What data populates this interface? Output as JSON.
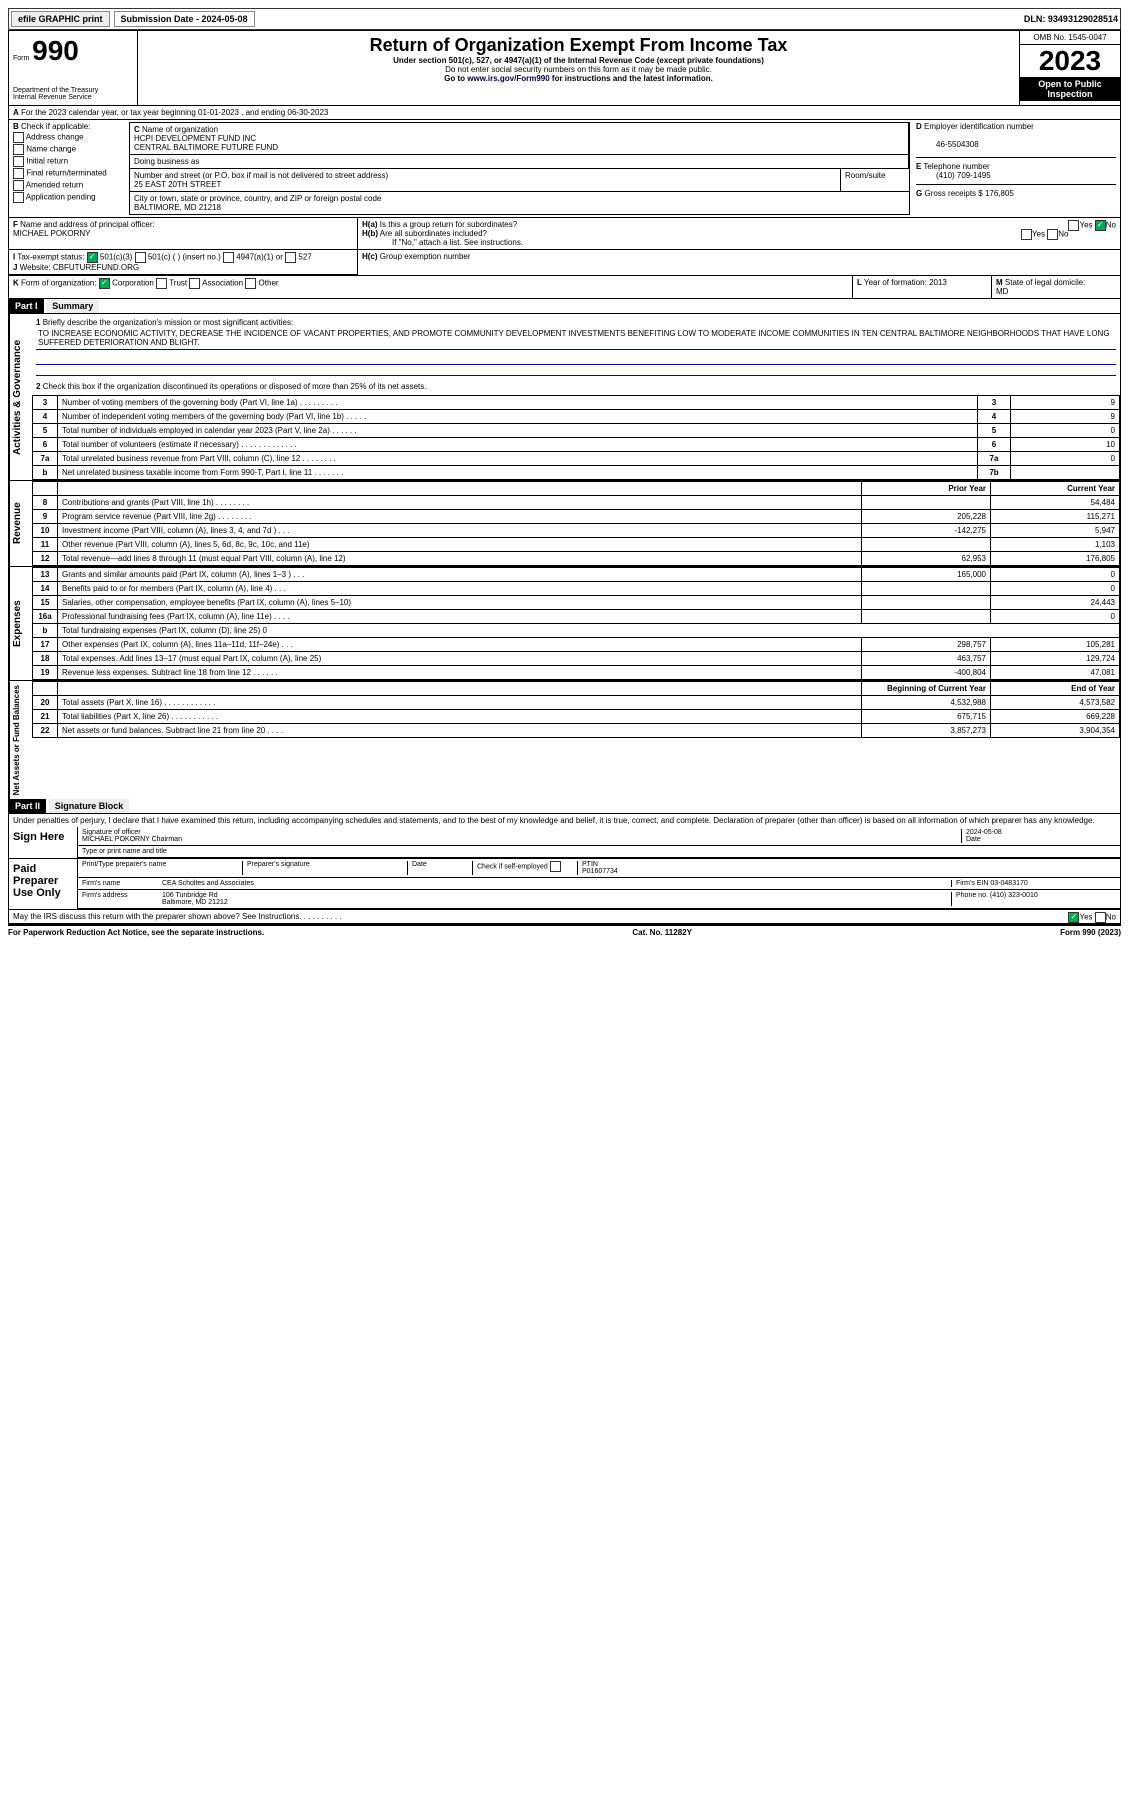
{
  "topbar": {
    "efile": "efile GRAPHIC print",
    "submission_label": "Submission Date - 2024-05-08",
    "dln": "DLN: 93493129028514"
  },
  "header": {
    "form_prefix": "Form",
    "form_num": "990",
    "dept1": "Department of the Treasury",
    "dept2": "Internal Revenue Service",
    "title": "Return of Organization Exempt From Income Tax",
    "subtitle1": "Under section 501(c), 527, or 4947(a)(1) of the Internal Revenue Code (except private foundations)",
    "subtitle2": "Do not enter social security numbers on this form as it may be made public.",
    "goto": "Go to ",
    "goto_link": "www.irs.gov/Form990",
    "goto_after": " for instructions and the latest information.",
    "omb": "OMB No. 1545-0047",
    "year": "2023",
    "inspection": "Open to Public Inspection"
  },
  "A": {
    "text": "For the 2023 calendar year, or tax year beginning 01-01-2023   , and ending 06-30-2023"
  },
  "B": {
    "label": "Check if applicable:",
    "items": [
      "Address change",
      "Name change",
      "Initial return",
      "Final return/terminated",
      "Amended return",
      "Application pending"
    ]
  },
  "C": {
    "name_label": "Name of organization",
    "name1": "HCPI DEVELOPMENT FUND INC",
    "name2": "CENTRAL BALTIMORE FUTURE FUND",
    "dba_label": "Doing business as",
    "street_label": "Number and street (or P.O. box if mail is not delivered to street address)",
    "room_label": "Room/suite",
    "street": "25 EAST 20TH STREET",
    "city_label": "City or town, state or province, country, and ZIP or foreign postal code",
    "city": "BALTIMORE, MD  21218"
  },
  "D": {
    "label": "Employer identification number",
    "value": "46-5504308"
  },
  "E": {
    "label": "Telephone number",
    "value": "(410) 709-1495"
  },
  "G": {
    "label": "Gross receipts $",
    "value": "176,805"
  },
  "F": {
    "label": "Name and address of principal officer:",
    "value": "MICHAEL POKORNY"
  },
  "H": {
    "a": "Is this a group return for subordinates?",
    "b": "Are all subordinates included?",
    "b_note": "If \"No,\" attach a list. See instructions.",
    "c": "Group exemption number",
    "yes": "Yes",
    "no": "No"
  },
  "I": {
    "label": "Tax-exempt status:",
    "o1": "501(c)(3)",
    "o2": "501(c) (  ) (insert no.)",
    "o3": "4947(a)(1) or",
    "o4": "527"
  },
  "J": {
    "label": "Website:",
    "value": "CBFUTUREFUND.ORG"
  },
  "K": {
    "label": "Form of organization:",
    "corp": "Corporation",
    "trust": "Trust",
    "assoc": "Association",
    "other": "Other"
  },
  "L": {
    "label": "Year of formation:",
    "value": "2013"
  },
  "M": {
    "label": "State of legal domicile:",
    "value": "MD"
  },
  "part1": {
    "title": "Part I",
    "subtitle": "Summary",
    "q1_label": "Briefly describe the organization's mission or most significant activities:",
    "q1_text": "TO INCREASE ECONOMIC ACTIVITY, DECREASE THE INCIDENCE OF VACANT PROPERTIES, AND PROMOTE COMMUNITY DEVELOPMENT INVESTMENTS BENEFITING LOW TO MODERATE INCOME COMMUNITIES IN TEN CENTRAL BALTIMORE NEIGHBORHOODS THAT HAVE LONG SUFFERED DETERIORATION AND BLIGHT.",
    "q2": "Check this box     if the organization discontinued its operations or disposed of more than 25% of its net assets.",
    "rows_gov": [
      {
        "n": "3",
        "d": "Number of voting members of the governing body (Part VI, line 1a)   .    .    .    .    .    .    .    .    .",
        "r": "3",
        "v": "9"
      },
      {
        "n": "4",
        "d": "Number of independent voting members of the governing body (Part VI, line 1b)   .    .    .    .    .",
        "r": "4",
        "v": "9"
      },
      {
        "n": "5",
        "d": "Total number of individuals employed in calendar year 2023 (Part V, line 2a)   .    .    .    .    .    .",
        "r": "5",
        "v": "0"
      },
      {
        "n": "6",
        "d": "Total number of volunteers (estimate if necessary)   .    .    .    .    .    .    .    .    .    .    .    .    .",
        "r": "6",
        "v": "10"
      },
      {
        "n": "7a",
        "d": "Total unrelated business revenue from Part VIII, column (C), line 12   .    .    .    .    .    .    .    .",
        "r": "7a",
        "v": "0"
      },
      {
        "n": "b",
        "d": "Net unrelated business taxable income from Form 990-T, Part I, line 11   .    .    .    .    .    .    .",
        "r": "7b",
        "v": ""
      }
    ],
    "prior": "Prior Year",
    "current": "Current Year",
    "rows_rev": [
      {
        "n": "8",
        "d": "Contributions and grants (Part VIII, line 1h)   .    .    .    .    .    .    .    .",
        "p": "",
        "c": "54,484"
      },
      {
        "n": "9",
        "d": "Program service revenue (Part VIII, line 2g)   .    .    .    .    .    .    .    .",
        "p": "205,228",
        "c": "115,271"
      },
      {
        "n": "10",
        "d": "Investment income (Part VIII, column (A), lines 3, 4, and 7d )   .    .    .",
        "p": "-142,275",
        "c": "5,947"
      },
      {
        "n": "11",
        "d": "Other revenue (Part VIII, column (A), lines 5, 6d, 8c, 9c, 10c, and 11e)",
        "p": "",
        "c": "1,103"
      },
      {
        "n": "12",
        "d": "Total revenue—add lines 8 through 11 (must equal Part VIII, column (A), line 12)",
        "p": "62,953",
        "c": "176,805"
      }
    ],
    "rows_exp": [
      {
        "n": "13",
        "d": "Grants and similar amounts paid (Part IX, column (A), lines 1–3 )   .    .    .",
        "p": "165,000",
        "c": "0"
      },
      {
        "n": "14",
        "d": "Benefits paid to or for members (Part IX, column (A), line 4)   .    .    .",
        "p": "",
        "c": "0"
      },
      {
        "n": "15",
        "d": "Salaries, other compensation, employee benefits (Part IX, column (A), lines 5–10)",
        "p": "",
        "c": "24,443"
      },
      {
        "n": "16a",
        "d": "Professional fundraising fees (Part IX, column (A), line 11e)   .    .    .    .",
        "p": "",
        "c": "0"
      },
      {
        "n": "b",
        "d": "Total fundraising expenses (Part IX, column (D), line 25) 0",
        "p": null,
        "c": null
      },
      {
        "n": "17",
        "d": "Other expenses (Part IX, column (A), lines 11a–11d, 11f–24e)   .    .    .",
        "p": "298,757",
        "c": "105,281"
      },
      {
        "n": "18",
        "d": "Total expenses. Add lines 13–17 (must equal Part IX, column (A), line 25)",
        "p": "463,757",
        "c": "129,724"
      },
      {
        "n": "19",
        "d": "Revenue less expenses. Subtract line 18 from line 12   .    .    .    .    .    .",
        "p": "-400,804",
        "c": "47,081"
      }
    ],
    "begin": "Beginning of Current Year",
    "end": "End of Year",
    "rows_net": [
      {
        "n": "20",
        "d": "Total assets (Part X, line 16)   .    .    .    .    .    .    .    .    .    .    .    .",
        "p": "4,532,988",
        "c": "4,573,582"
      },
      {
        "n": "21",
        "d": "Total liabilities (Part X, line 26)   .    .    .    .    .    .    .    .    .    .    .",
        "p": "675,715",
        "c": "669,228"
      },
      {
        "n": "22",
        "d": "Net assets or fund balances. Subtract line 21 from line 20   .    .    .    .",
        "p": "3,857,273",
        "c": "3,904,354"
      }
    ],
    "vlabels": {
      "gov": "Activities & Governance",
      "rev": "Revenue",
      "exp": "Expenses",
      "net": "Net Assets or Fund Balances"
    }
  },
  "part2": {
    "title": "Part II",
    "subtitle": "Signature Block",
    "perjury": "Under penalties of perjury, I declare that I have examined this return, including accompanying schedules and statements, and to the best of my knowledge and belief, it is true, correct, and complete. Declaration of preparer (other than officer) is based on all information of which preparer has any knowledge.",
    "sign_here": "Sign Here",
    "sig_officer": "Signature of officer",
    "sig_name": "MICHAEL POKORNY Chairman",
    "sig_type": "Type or print name and title",
    "date": "Date",
    "date_val": "2024-05-08",
    "paid": "Paid Preparer Use Only",
    "prep_name_label": "Print/Type preparer's name",
    "prep_sig_label": "Preparer's signature",
    "check_self": "Check     if self-employed",
    "ptin_label": "PTIN",
    "ptin": "P01607734",
    "firm_name_label": "Firm's name",
    "firm_name": "CEA Scholtes and Associates",
    "firm_ein_label": "Firm's EIN",
    "firm_ein": "03-0483170",
    "firm_addr_label": "Firm's address",
    "firm_addr1": "106 Tunbridge Rd",
    "firm_addr2": "Baltimore, MD  21212",
    "phone_label": "Phone no.",
    "phone": "(410) 323-0010",
    "discuss": "May the IRS discuss this return with the preparer shown above? See Instructions.   .    .    .    .    .    .    .    .    .",
    "yes": "Yes",
    "no": "No"
  },
  "footer": {
    "left": "For Paperwork Reduction Act Notice, see the separate instructions.",
    "mid": "Cat. No. 11282Y",
    "right": "Form 990 (2023)"
  }
}
